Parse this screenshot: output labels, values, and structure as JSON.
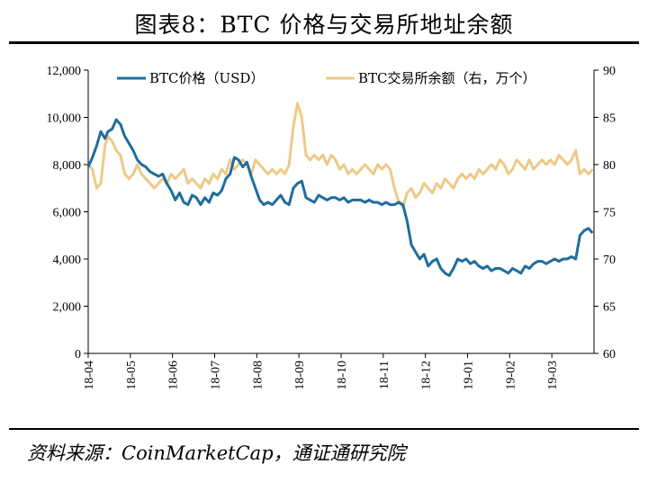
{
  "title": "图表8：BTC 价格与交易所地址余额",
  "source": "资料来源：CoinMarketCap，通证通研究院",
  "colors": {
    "price": "#1f6d9c",
    "balance": "#ecca86",
    "axis": "#000000"
  },
  "chart_data": {
    "type": "line",
    "x_ticks": [
      "18-04",
      "18-05",
      "18-06",
      "18-07",
      "18-08",
      "18-09",
      "18-10",
      "18-11",
      "18-12",
      "19-01",
      "19-02",
      "19-03"
    ],
    "y_left": {
      "min": 0,
      "max": 12000,
      "ticks": [
        "0",
        "2,000",
        "4,000",
        "6,000",
        "8,000",
        "10,000",
        "12,000"
      ]
    },
    "y_right": {
      "min": 60,
      "max": 90,
      "ticks": [
        "60",
        "65",
        "70",
        "75",
        "80",
        "85",
        "90"
      ]
    },
    "legend_position": "top",
    "grid": false,
    "series": [
      {
        "name": "BTC价格（USD）",
        "axis": "left",
        "x": [
          0,
          3,
          6,
          9,
          12,
          14,
          17,
          20,
          23,
          26,
          29,
          32,
          35,
          38,
          41,
          44,
          47,
          50,
          53,
          56,
          59,
          62,
          65,
          68,
          71,
          74,
          77,
          80,
          83,
          86,
          89,
          92,
          95,
          98,
          101,
          104,
          107,
          110,
          113,
          116,
          119,
          122,
          125,
          128,
          131,
          134,
          137,
          140,
          143,
          146,
          149,
          152,
          155,
          158,
          161,
          164,
          167,
          170,
          173,
          176,
          179,
          182,
          185,
          188,
          191,
          194,
          197,
          200,
          203,
          206,
          209,
          212,
          215,
          218,
          221,
          224,
          227,
          230,
          233,
          236,
          239,
          242,
          245,
          248,
          251,
          254,
          257,
          260,
          263,
          266,
          269,
          272,
          275,
          278,
          281,
          284,
          287,
          290,
          293,
          296,
          299,
          302,
          305,
          308,
          311,
          314,
          317,
          320,
          323,
          326,
          329,
          332,
          335,
          338,
          341,
          344,
          347,
          350,
          353,
          356,
          359
        ],
        "values": [
          7900,
          8300,
          8800,
          9400,
          9100,
          9400,
          9500,
          9900,
          9700,
          9200,
          8900,
          8600,
          8200,
          8000,
          7900,
          7700,
          7600,
          7500,
          7600,
          7200,
          6900,
          6500,
          6800,
          6400,
          6300,
          6700,
          6600,
          6300,
          6600,
          6400,
          6800,
          6700,
          6900,
          7400,
          7600,
          8300,
          8200,
          7900,
          8100,
          7500,
          7000,
          6500,
          6300,
          6400,
          6300,
          6500,
          6700,
          6400,
          6300,
          7000,
          7200,
          7300,
          6600,
          6500,
          6400,
          6700,
          6600,
          6500,
          6600,
          6600,
          6500,
          6600,
          6400,
          6500,
          6500,
          6500,
          6400,
          6500,
          6400,
          6400,
          6300,
          6400,
          6300,
          6300,
          6400,
          6300,
          5600,
          4600,
          4300,
          4000,
          4200,
          3700,
          3900,
          4000,
          3600,
          3400,
          3300,
          3600,
          4000,
          3900,
          4000,
          3800,
          3900,
          3700,
          3600,
          3700,
          3500,
          3600,
          3600,
          3500,
          3400,
          3600,
          3500,
          3400,
          3700,
          3600,
          3800,
          3900,
          3900,
          3800,
          3900,
          4000,
          3900,
          4000,
          4000,
          4100,
          4000,
          5000,
          5200,
          5300,
          5100
        ]
      },
      {
        "name": "BTC交易所余额（右，万个）",
        "axis": "right",
        "x": [
          0,
          3,
          6,
          9,
          12,
          14,
          17,
          20,
          23,
          26,
          29,
          32,
          35,
          38,
          41,
          44,
          47,
          50,
          53,
          56,
          59,
          62,
          65,
          68,
          71,
          74,
          77,
          80,
          83,
          86,
          89,
          92,
          95,
          98,
          101,
          104,
          107,
          110,
          113,
          116,
          119,
          122,
          125,
          128,
          131,
          134,
          137,
          140,
          143,
          146,
          149,
          152,
          155,
          158,
          161,
          164,
          167,
          170,
          173,
          176,
          179,
          182,
          185,
          188,
          191,
          194,
          197,
          200,
          203,
          206,
          209,
          212,
          215,
          218,
          221,
          224,
          227,
          230,
          233,
          236,
          239,
          242,
          245,
          248,
          251,
          254,
          257,
          260,
          263,
          266,
          269,
          272,
          275,
          278,
          281,
          284,
          287,
          290,
          293,
          296,
          299,
          302,
          305,
          308,
          311,
          314,
          317,
          320,
          323,
          326,
          329,
          332,
          335,
          338,
          341,
          344,
          347,
          350,
          353,
          356,
          359
        ],
        "values": [
          80.0,
          79.5,
          77.5,
          78.0,
          82.0,
          83.0,
          82.5,
          81.5,
          81.0,
          79.0,
          78.5,
          79.0,
          80.0,
          79.0,
          78.5,
          78.0,
          77.5,
          78.0,
          78.5,
          78.0,
          79.0,
          78.5,
          79.0,
          79.5,
          78.0,
          78.5,
          78.0,
          77.5,
          78.5,
          78.0,
          79.0,
          78.5,
          79.5,
          79.0,
          80.5,
          79.5,
          80.0,
          80.5,
          80.0,
          79.0,
          80.5,
          80.0,
          79.5,
          79.0,
          79.5,
          79.0,
          79.5,
          79.0,
          80.0,
          84.0,
          86.5,
          85.0,
          81.0,
          80.5,
          81.0,
          80.5,
          81.0,
          80.0,
          81.0,
          80.5,
          79.5,
          80.0,
          79.0,
          79.5,
          79.0,
          79.5,
          80.0,
          79.5,
          79.0,
          80.0,
          79.5,
          80.0,
          79.5,
          77.5,
          76.0,
          75.5,
          77.0,
          77.5,
          76.5,
          77.0,
          78.0,
          77.5,
          77.0,
          78.0,
          77.5,
          78.5,
          78.0,
          77.5,
          78.5,
          79.0,
          78.5,
          79.0,
          78.5,
          79.5,
          79.0,
          79.5,
          80.0,
          79.5,
          80.5,
          80.0,
          79.0,
          79.5,
          80.5,
          80.0,
          79.5,
          80.5,
          79.5,
          80.0,
          80.5,
          80.0,
          80.5,
          80.0,
          81.0,
          80.5,
          80.0,
          80.5,
          81.5,
          79.0,
          79.5,
          79.0,
          79.5
        ]
      }
    ]
  }
}
